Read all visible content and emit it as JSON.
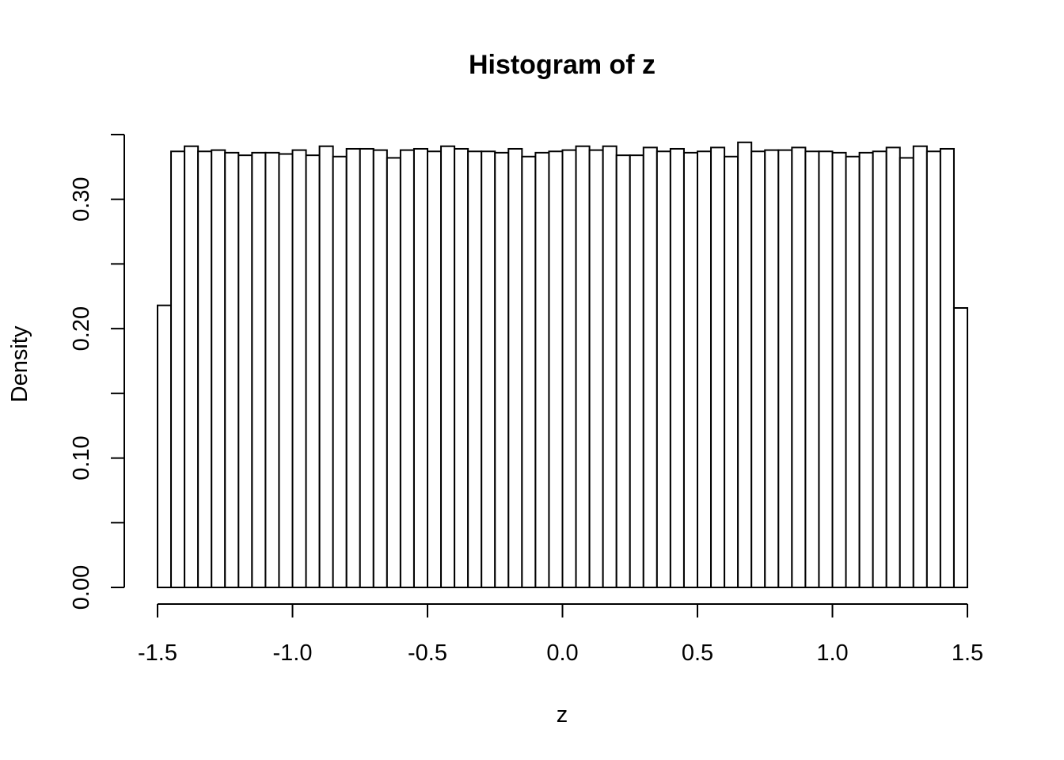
{
  "chart_data": {
    "type": "bar",
    "title": "Histogram of z",
    "xlabel": "z",
    "ylabel": "Density",
    "xlim": [
      -1.5,
      1.5
    ],
    "ylim": [
      0,
      0.35
    ],
    "grid": false,
    "bin_start": -1.5,
    "bin_width": 0.05,
    "x_ticks": [
      -1.5,
      -1.0,
      -0.5,
      0.0,
      0.5,
      1.0,
      1.5
    ],
    "x_tick_labels": [
      "-1.5",
      "-1.0",
      "-0.5",
      "0.0",
      "0.5",
      "1.0",
      "1.5"
    ],
    "y_ticks": [
      0.0,
      0.05,
      0.1,
      0.15,
      0.2,
      0.25,
      0.3,
      0.35
    ],
    "y_tick_labels": [
      "0.00",
      "",
      "0.10",
      "",
      "0.20",
      "",
      "0.30",
      ""
    ],
    "values": [
      0.218,
      0.337,
      0.341,
      0.337,
      0.338,
      0.336,
      0.334,
      0.336,
      0.336,
      0.335,
      0.338,
      0.334,
      0.341,
      0.333,
      0.339,
      0.339,
      0.338,
      0.332,
      0.338,
      0.339,
      0.337,
      0.341,
      0.339,
      0.337,
      0.337,
      0.336,
      0.339,
      0.333,
      0.336,
      0.337,
      0.338,
      0.341,
      0.338,
      0.341,
      0.334,
      0.334,
      0.34,
      0.337,
      0.339,
      0.336,
      0.337,
      0.34,
      0.333,
      0.344,
      0.337,
      0.338,
      0.338,
      0.34,
      0.337,
      0.337,
      0.336,
      0.333,
      0.336,
      0.337,
      0.34,
      0.332,
      0.341,
      0.337,
      0.339,
      0.216
    ],
    "bar_fill": "#ffffff",
    "bar_stroke": "#000000"
  }
}
